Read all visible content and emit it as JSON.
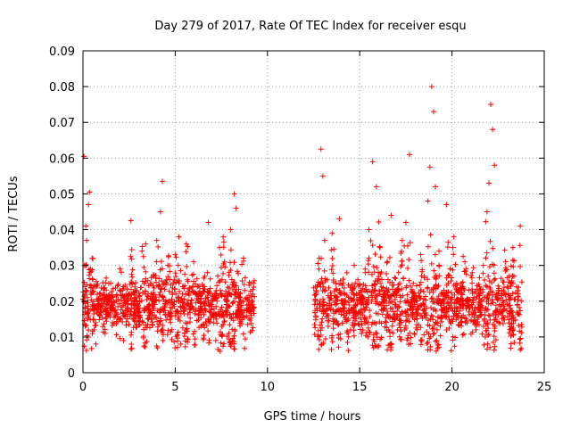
{
  "chart_data": {
    "type": "scatter",
    "title": "Day 279 of 2017, Rate Of TEC Index for receiver esqu",
    "xlabel": "GPS time / hours",
    "ylabel": "ROTI / TECUs",
    "xlim": [
      0,
      25
    ],
    "ylim": [
      0,
      0.09
    ],
    "x_ticks": [
      "0",
      "5",
      "10",
      "15",
      "20",
      "25"
    ],
    "y_ticks": [
      "0",
      "0.01",
      "0.02",
      "0.03",
      "0.04",
      "0.05",
      "0.06",
      "0.07",
      "0.08",
      "0.09"
    ],
    "x_tick_values": [
      0,
      5,
      10,
      15,
      20,
      25
    ],
    "y_tick_values": [
      0,
      0.01,
      0.02,
      0.03,
      0.04,
      0.05,
      0.06,
      0.07,
      0.08,
      0.09
    ],
    "grid": true,
    "marker": "plus",
    "color": "#ff0000",
    "gap_hours": [
      9.3,
      12.5
    ],
    "series": [
      {
        "points": [
          [
            0.0,
            0.0205
          ],
          [
            0.05,
            0.0605
          ],
          [
            0.12,
            0.018
          ],
          [
            0.15,
            0.041
          ],
          [
            0.2,
            0.037
          ],
          [
            0.25,
            0.015
          ],
          [
            0.3,
            0.047
          ],
          [
            0.35,
            0.0505
          ],
          [
            0.4,
            0.029
          ],
          [
            0.5,
            0.032
          ],
          [
            0.6,
            0.012
          ],
          [
            0.7,
            0.008
          ],
          [
            0.8,
            0.019
          ],
          [
            0.9,
            0.022
          ],
          [
            1.0,
            0.017
          ],
          [
            1.2,
            0.011
          ],
          [
            1.4,
            0.025
          ],
          [
            1.6,
            0.014
          ],
          [
            1.8,
            0.02
          ],
          [
            2.0,
            0.029
          ],
          [
            2.2,
            0.009
          ],
          [
            2.4,
            0.018
          ],
          [
            2.6,
            0.0425
          ],
          [
            2.8,
            0.021
          ],
          [
            3.0,
            0.015
          ],
          [
            3.2,
            0.034
          ],
          [
            3.4,
            0.036
          ],
          [
            3.6,
            0.019
          ],
          [
            3.8,
            0.027
          ],
          [
            4.0,
            0.037
          ],
          [
            4.2,
            0.045
          ],
          [
            4.3,
            0.0535
          ],
          [
            4.4,
            0.025
          ],
          [
            4.6,
            0.03
          ],
          [
            4.8,
            0.012
          ],
          [
            5.0,
            0.033
          ],
          [
            5.2,
            0.038
          ],
          [
            5.4,
            0.022
          ],
          [
            5.6,
            0.036
          ],
          [
            5.8,
            0.018
          ],
          [
            6.0,
            0.031
          ],
          [
            6.2,
            0.024
          ],
          [
            6.4,
            0.013
          ],
          [
            6.6,
            0.027
          ],
          [
            6.8,
            0.042
          ],
          [
            7.0,
            0.02
          ],
          [
            7.2,
            0.009
          ],
          [
            7.4,
            0.035
          ],
          [
            7.6,
            0.038
          ],
          [
            7.8,
            0.016
          ],
          [
            8.0,
            0.04
          ],
          [
            8.2,
            0.05
          ],
          [
            8.3,
            0.046
          ],
          [
            8.5,
            0.022
          ],
          [
            8.7,
            0.032
          ],
          [
            8.9,
            0.018
          ],
          [
            9.1,
            0.025
          ],
          [
            9.2,
            0.019
          ],
          [
            12.6,
            0.02
          ],
          [
            12.8,
            0.032
          ],
          [
            12.9,
            0.0625
          ],
          [
            13.0,
            0.055
          ],
          [
            13.1,
            0.037
          ],
          [
            13.3,
            0.016
          ],
          [
            13.5,
            0.039
          ],
          [
            13.7,
            0.025
          ],
          [
            13.9,
            0.043
          ],
          [
            14.1,
            0.02
          ],
          [
            14.3,
            0.028
          ],
          [
            14.5,
            0.012
          ],
          [
            14.7,
            0.03
          ],
          [
            14.9,
            0.026
          ],
          [
            15.1,
            0.011
          ],
          [
            15.3,
            0.028
          ],
          [
            15.5,
            0.04
          ],
          [
            15.7,
            0.059
          ],
          [
            15.9,
            0.052
          ],
          [
            16.1,
            0.035
          ],
          [
            16.3,
            0.021
          ],
          [
            16.5,
            0.031
          ],
          [
            16.7,
            0.044
          ],
          [
            16.9,
            0.015
          ],
          [
            17.1,
            0.028
          ],
          [
            17.3,
            0.037
          ],
          [
            17.5,
            0.042
          ],
          [
            17.7,
            0.061
          ],
          [
            17.9,
            0.025
          ],
          [
            18.1,
            0.018
          ],
          [
            18.3,
            0.033
          ],
          [
            18.5,
            0.027
          ],
          [
            18.7,
            0.048
          ],
          [
            18.8,
            0.0575
          ],
          [
            18.9,
            0.08
          ],
          [
            19.0,
            0.073
          ],
          [
            19.1,
            0.052
          ],
          [
            19.3,
            0.034
          ],
          [
            19.5,
            0.022
          ],
          [
            19.7,
            0.047
          ],
          [
            19.9,
            0.029
          ],
          [
            20.1,
            0.038
          ],
          [
            20.3,
            0.016
          ],
          [
            20.5,
            0.025
          ],
          [
            20.7,
            0.031
          ],
          [
            20.9,
            0.02
          ],
          [
            21.1,
            0.028
          ],
          [
            21.3,
            0.012
          ],
          [
            21.5,
            0.024
          ],
          [
            21.7,
            0.03
          ],
          [
            21.9,
            0.045
          ],
          [
            22.0,
            0.053
          ],
          [
            22.1,
            0.075
          ],
          [
            22.2,
            0.068
          ],
          [
            22.3,
            0.058
          ],
          [
            22.5,
            0.023
          ],
          [
            22.7,
            0.019
          ],
          [
            22.9,
            0.031
          ],
          [
            23.1,
            0.027
          ],
          [
            23.3,
            0.035
          ],
          [
            23.5,
            0.024
          ],
          [
            23.7,
            0.041
          ]
        ]
      }
    ]
  }
}
